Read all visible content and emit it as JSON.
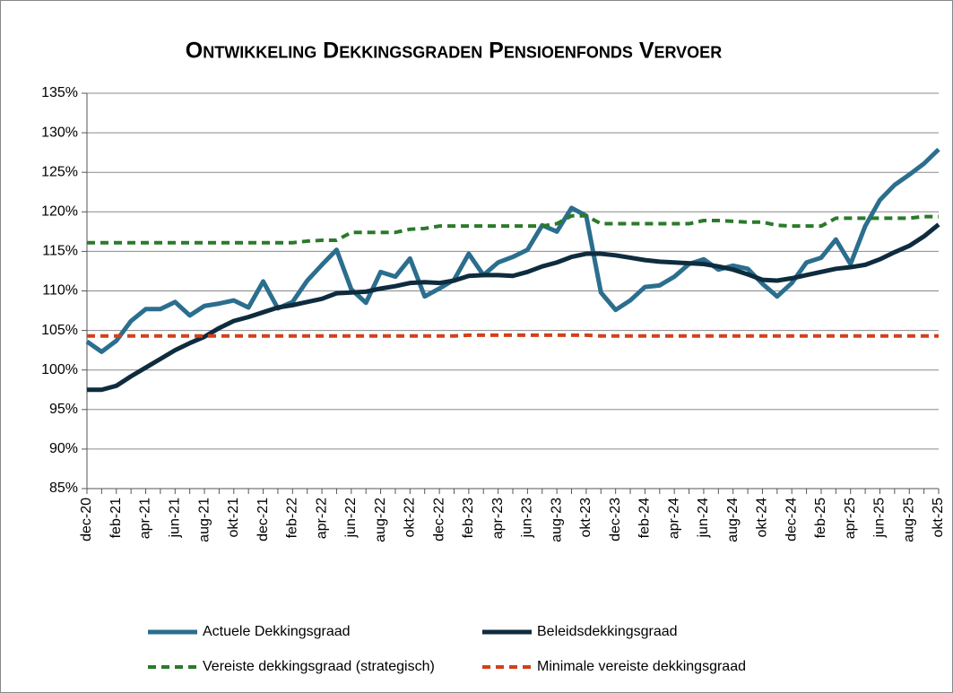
{
  "chart_data": {
    "type": "line",
    "title": "Ontwikkeling Dekkingsgraden Pensioenfonds Vervoer",
    "categories": [
      "dec-20",
      null,
      "feb-21",
      null,
      "apr-21",
      null,
      "jun-21",
      null,
      "aug-21",
      null,
      "okt-21",
      null,
      "dec-21",
      null,
      "feb-22",
      null,
      "apr-22",
      null,
      "jun-22",
      null,
      "aug-22",
      null,
      "okt-22",
      null,
      "dec-22",
      null,
      "feb-23",
      null,
      "apr-23",
      null,
      "jun-23",
      null,
      "aug-23",
      null,
      "okt-23",
      null,
      "dec-23",
      null,
      "feb-24",
      null,
      "apr-24",
      null,
      "jun-24",
      null,
      "aug-24",
      null,
      "okt-24",
      null,
      "dec-24",
      null,
      "feb-25",
      null,
      "apr-25",
      null,
      "jun-25",
      null,
      "aug-25",
      null,
      "okt-25"
    ],
    "ylim": [
      85,
      135
    ],
    "yticks": [
      {
        "value": 85,
        "label": "85%"
      },
      {
        "value": 90,
        "label": "90%"
      },
      {
        "value": 95,
        "label": "95%"
      },
      {
        "value": 100,
        "label": "100%"
      },
      {
        "value": 105,
        "label": "105%"
      },
      {
        "value": 110,
        "label": "110%"
      },
      {
        "value": 115,
        "label": "115%"
      },
      {
        "value": 120,
        "label": "120%"
      },
      {
        "value": 125,
        "label": "125%"
      },
      {
        "value": 130,
        "label": "130%"
      },
      {
        "value": 135,
        "label": "135%"
      }
    ],
    "grid": true,
    "series": [
      {
        "name": "Actuele Dekkingsgraad",
        "color": "#2b6e8e",
        "style": "solid",
        "values": [
          103.6,
          102.3,
          103.7,
          106.2,
          107.7,
          107.7,
          108.6,
          106.9,
          108.1,
          108.4,
          108.8,
          107.9,
          111.2,
          107.8,
          108.6,
          111.3,
          113.3,
          115.2,
          110.2,
          108.5,
          112.4,
          111.8,
          114.1,
          109.3,
          110.3,
          111.4,
          114.7,
          112.0,
          113.6,
          114.3,
          115.2,
          118.3,
          117.5,
          120.5,
          119.5,
          109.8,
          107.6,
          108.8,
          110.5,
          110.7,
          111.8,
          113.4,
          114.0,
          112.7,
          113.2,
          112.8,
          110.9,
          109.3,
          111.0,
          113.6,
          114.2,
          116.5,
          113.4,
          118.2,
          121.5,
          123.4,
          124.7,
          126.1,
          127.9
        ]
      },
      {
        "name": "Beleidsdekkingsgraad",
        "color": "#0e2c3e",
        "style": "solid",
        "values": [
          97.5,
          97.5,
          98.0,
          99.2,
          100.3,
          101.4,
          102.5,
          103.4,
          104.2,
          105.3,
          106.2,
          106.7,
          107.3,
          107.9,
          108.2,
          108.6,
          109.0,
          109.7,
          109.8,
          109.9,
          110.3,
          110.6,
          111.0,
          111.1,
          111.0,
          111.3,
          111.9,
          112.0,
          112.0,
          111.9,
          112.4,
          113.1,
          113.6,
          114.3,
          114.7,
          114.7,
          114.5,
          114.2,
          113.9,
          113.7,
          113.6,
          113.5,
          113.4,
          113.1,
          112.7,
          112.1,
          111.4,
          111.3,
          111.6,
          112.0,
          112.4,
          112.8,
          113.0,
          113.3,
          114.0,
          114.9,
          115.7,
          116.9,
          118.4
        ]
      },
      {
        "name": "Vereiste dekkingsgraad (strategisch)",
        "color": "#2a7a2a",
        "style": "dashed",
        "values": [
          116.1,
          116.1,
          116.1,
          116.1,
          116.1,
          116.1,
          116.1,
          116.1,
          116.1,
          116.1,
          116.1,
          116.1,
          116.1,
          116.1,
          116.1,
          116.3,
          116.4,
          116.4,
          117.4,
          117.4,
          117.4,
          117.4,
          117.8,
          117.9,
          118.2,
          118.2,
          118.2,
          118.2,
          118.2,
          118.2,
          118.2,
          118.2,
          118.5,
          119.5,
          119.5,
          118.5,
          118.5,
          118.5,
          118.5,
          118.5,
          118.5,
          118.5,
          118.9,
          118.9,
          118.8,
          118.7,
          118.7,
          118.3,
          118.2,
          118.2,
          118.2,
          119.2,
          119.2,
          119.2,
          119.2,
          119.2,
          119.2,
          119.4,
          119.4
        ]
      },
      {
        "name": "Minimale vereiste dekkingsgraad",
        "color": "#d2401a",
        "style": "dashed",
        "values": [
          104.3,
          104.3,
          104.3,
          104.3,
          104.3,
          104.3,
          104.3,
          104.3,
          104.3,
          104.3,
          104.3,
          104.3,
          104.3,
          104.3,
          104.3,
          104.3,
          104.3,
          104.3,
          104.3,
          104.3,
          104.3,
          104.3,
          104.3,
          104.3,
          104.3,
          104.3,
          104.4,
          104.4,
          104.4,
          104.4,
          104.4,
          104.4,
          104.4,
          104.4,
          104.4,
          104.3,
          104.3,
          104.3,
          104.3,
          104.3,
          104.3,
          104.3,
          104.3,
          104.3,
          104.3,
          104.3,
          104.3,
          104.3,
          104.3,
          104.3,
          104.3,
          104.3,
          104.3,
          104.3,
          104.3,
          104.3,
          104.3,
          104.3,
          104.3
        ]
      }
    ]
  }
}
